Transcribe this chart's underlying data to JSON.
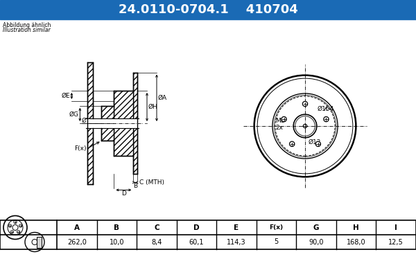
{
  "title_part1": "24.0110-0704.1",
  "title_part2": "410704",
  "header_bg": "#1a6ab5",
  "header_text_color": "#ffffff",
  "bg_color": "#ffffff",
  "note_line1": "Abbildung ähnlich",
  "note_line2": "Illustration similar",
  "table_headers": [
    "A",
    "B",
    "C",
    "D",
    "E",
    "F(x)",
    "G",
    "H",
    "I"
  ],
  "table_values": [
    "262,0",
    "10,0",
    "8,4",
    "60,1",
    "114,3",
    "5",
    "90,0",
    "168,0",
    "12,5"
  ],
  "line_color": "#000000",
  "table_border": "#000000"
}
